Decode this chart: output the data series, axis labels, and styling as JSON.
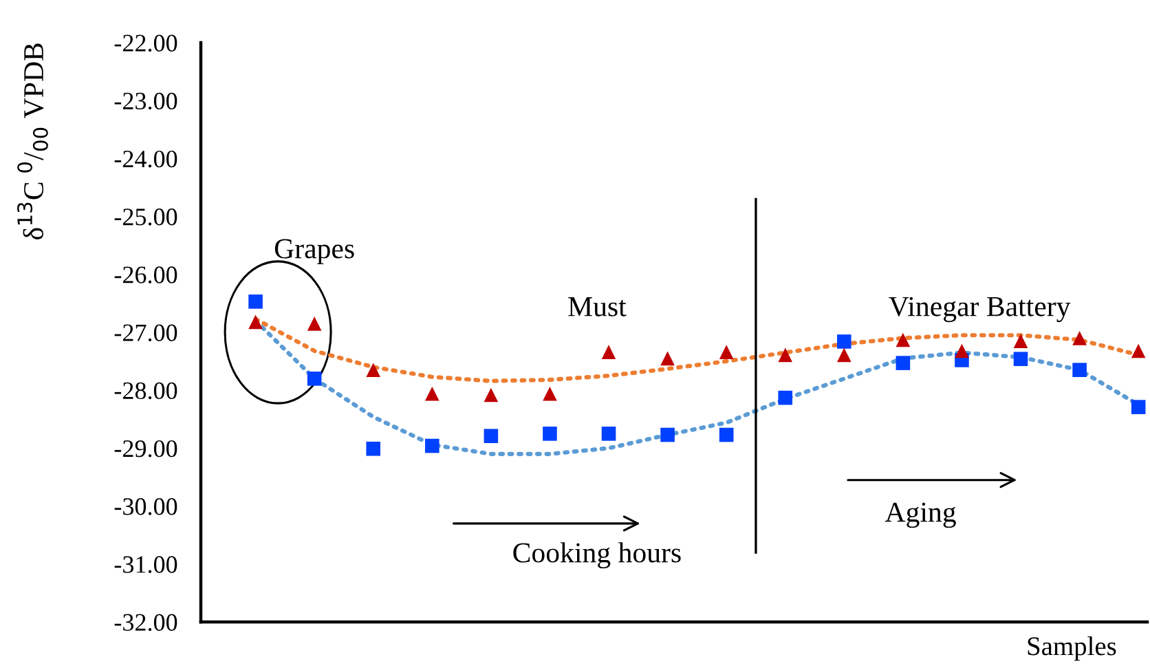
{
  "chart_data": {
    "type": "scatter",
    "ylabel": "δ$^{13}$C $^{0}$/$_{00}$ VPDB",
    "xlabel": "Samples",
    "categories": [
      null,
      null,
      null,
      null,
      null,
      null,
      null,
      null,
      null,
      null,
      null,
      null,
      null,
      null,
      null,
      null
    ],
    "ylim": [
      -32,
      -22
    ],
    "yticks": [
      {
        "value": -32,
        "label": "-32.00"
      },
      {
        "value": -31,
        "label": "-31.00"
      },
      {
        "value": -30,
        "label": "-30.00"
      },
      {
        "value": -29,
        "label": "-29.00"
      },
      {
        "value": -28,
        "label": "-28.00"
      },
      {
        "value": -27,
        "label": "-27.00"
      },
      {
        "value": -26,
        "label": "-26.00"
      },
      {
        "value": -25,
        "label": "-25.00"
      },
      {
        "value": -24,
        "label": "-24.00"
      },
      {
        "value": -23,
        "label": "-23.00"
      },
      {
        "value": -22,
        "label": "-22.00"
      }
    ],
    "grid": false,
    "legend": false,
    "series": [
      {
        "marker": "square",
        "color": "#0040ff",
        "values": [
          -26.47,
          -27.8,
          -29.01,
          -28.96,
          -28.79,
          -28.75,
          -28.75,
          -28.77,
          -28.77,
          -28.13,
          -27.16,
          -27.53,
          -27.48,
          -27.46,
          -27.65,
          -28.29
        ]
      },
      {
        "marker": "triangle",
        "color": "#c00000",
        "values": [
          -26.82,
          -26.85,
          -27.65,
          -28.06,
          -28.08,
          -28.06,
          -27.34,
          -27.45,
          -27.34,
          -27.39,
          -27.39,
          -27.13,
          -27.32,
          -27.15,
          -27.1,
          -27.32
        ]
      },
      {
        "type": "line",
        "line_style": "dotted",
        "color": "#5b9bd5",
        "values": [
          -26.8,
          -27.8,
          -28.46,
          -28.94,
          -29.1,
          -29.1,
          -29.0,
          -28.77,
          -28.56,
          -28.15,
          -27.8,
          -27.45,
          -27.35,
          -27.43,
          -27.65,
          -28.25
        ]
      },
      {
        "type": "line",
        "line_style": "dotted",
        "color": "#ed7d31",
        "values": [
          -26.77,
          -27.32,
          -27.6,
          -27.77,
          -27.84,
          -27.82,
          -27.75,
          -27.63,
          -27.5,
          -27.35,
          -27.2,
          -27.1,
          -27.05,
          -27.05,
          -27.13,
          -27.39
        ]
      }
    ],
    "annotations": [
      "Grapes",
      "Must",
      "Vinegar Battery",
      "Cooking hours",
      "Aging"
    ]
  }
}
